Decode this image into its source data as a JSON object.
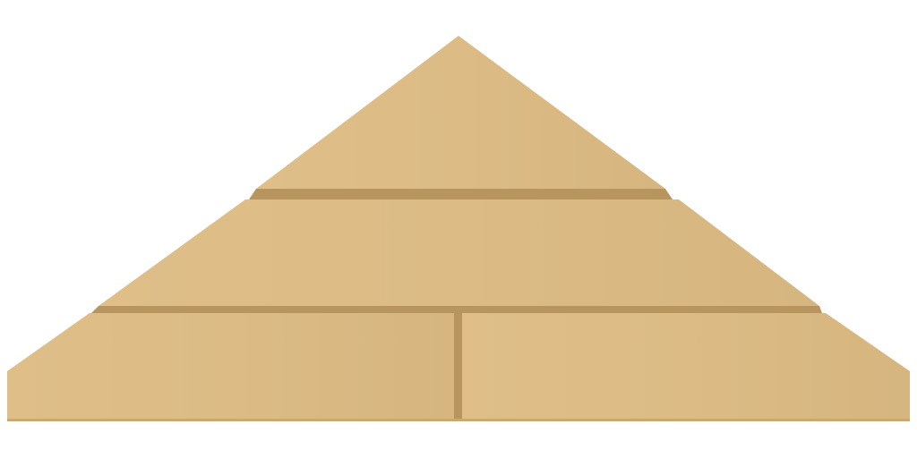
{
  "scene": {
    "subject": "stacked-pyramid",
    "background_color": "#ffffff",
    "colors": {
      "block_face": "#dcbb85",
      "block_face_light": "#dfbe88",
      "block_face_dark": "#d4b37d",
      "seam": "#b8955f",
      "seam_dark": "#a98a57"
    },
    "tiers": [
      {
        "name": "top-tier",
        "pieces": 1
      },
      {
        "name": "middle-tier",
        "pieces": 1
      },
      {
        "name": "bottom-tier",
        "pieces": 2
      }
    ]
  }
}
